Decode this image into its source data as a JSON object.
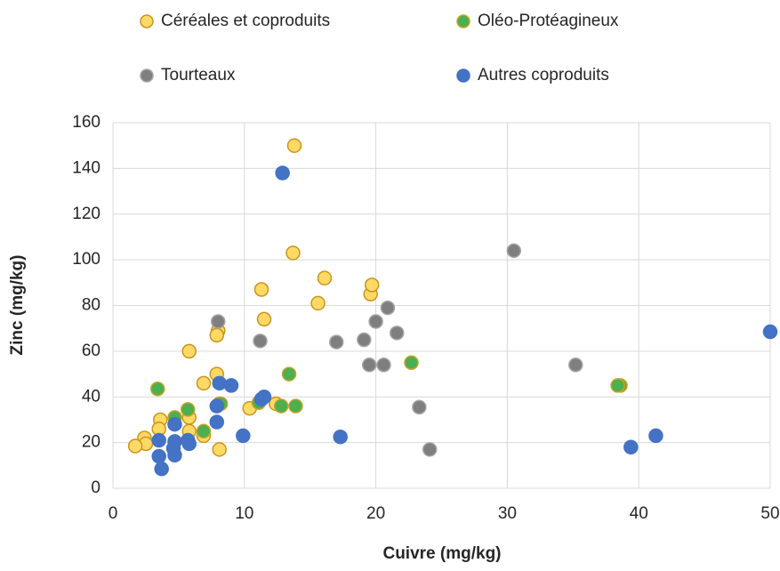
{
  "chart_data": {
    "type": "scatter",
    "x_label": "Cuivre (mg/kg)",
    "y_label": "Zinc (mg/kg)",
    "xlim": [
      0,
      50
    ],
    "xticks": [
      0,
      10,
      20,
      30,
      40,
      50
    ],
    "ylim": [
      0,
      160
    ],
    "yticks": [
      0,
      20,
      40,
      60,
      80,
      100,
      120,
      140,
      160
    ],
    "grid": true,
    "legend": "top",
    "series": [
      {
        "name": "Céréales et coproduits",
        "color": "#ffd966",
        "edgecolor": "#c9951c",
        "x": [
          13.8,
          13.7,
          11.3,
          11.5,
          16.1,
          15.6,
          19.6,
          19.7,
          8,
          7.9,
          5.8,
          7.9,
          6.9,
          8.1,
          10.4,
          12.4,
          3.6,
          3.5,
          5.8,
          5.8,
          6.9,
          2.4,
          2.5,
          1.7,
          8.1
        ],
        "values": [
          150,
          103,
          87,
          74,
          92,
          81,
          85,
          89,
          69,
          67,
          60,
          50,
          46,
          37,
          35,
          37,
          30,
          26,
          31,
          25,
          23,
          22,
          19.5,
          18.5,
          17
        ]
      },
      {
        "name": "Oléo-Protéagineux",
        "color": "#4caf50",
        "edgecolor": "#c9a227",
        "x": [
          3.4,
          5.7,
          4.7,
          6.9,
          8.2,
          11.1,
          12.8,
          13.9,
          13.4,
          22.7,
          38.6,
          38.4
        ],
        "values": [
          43.5,
          34.5,
          31,
          25,
          37,
          37.5,
          36,
          36,
          50,
          55,
          45,
          45
        ]
      },
      {
        "name": "Tourteaux",
        "color": "#7f7f7f",
        "edgecolor": "#a5a5a5",
        "x": [
          30.5,
          8,
          11.2,
          20.9,
          20,
          21.6,
          17,
          19.1,
          19.5,
          20.6,
          35.2,
          23.3,
          24.1
        ],
        "values": [
          104,
          73,
          64.5,
          79,
          73,
          68,
          64,
          65,
          54,
          54,
          54,
          35.5,
          17
        ]
      },
      {
        "name": "Autres coproduits",
        "color": "#4472c4",
        "edgecolor": "#4472c4",
        "x": [
          12.9,
          50,
          8.1,
          9,
          11.5,
          11.3,
          7.9,
          7.9,
          9.9,
          17.3,
          39.4,
          41.3,
          3.5,
          3.5,
          3.7,
          4.7,
          4.7,
          4.6,
          4.7,
          5.7,
          5.8
        ],
        "values": [
          138,
          68.5,
          46,
          45,
          40,
          39,
          36,
          29,
          23,
          22.5,
          18,
          23,
          21,
          14,
          8.5,
          28,
          20.5,
          17.5,
          14.5,
          21,
          19.5
        ]
      }
    ]
  }
}
